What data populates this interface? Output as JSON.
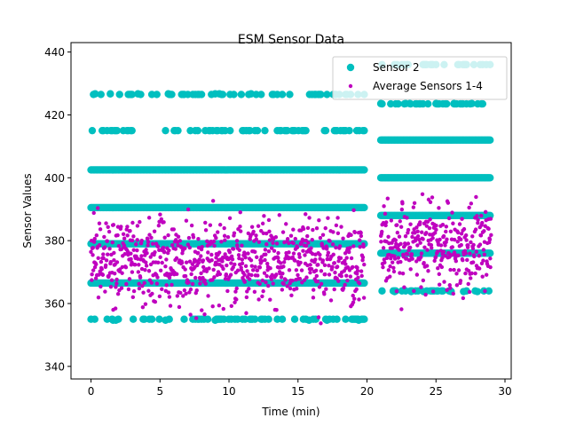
{
  "chart_data": {
    "type": "scatter",
    "title": "ESM Sensor Data",
    "xlabel": "Time (min)",
    "ylabel": "Sensor Values",
    "xlim": [
      -1.45,
      30.45
    ],
    "ylim": [
      336,
      443
    ],
    "xticks": [
      0,
      5,
      10,
      15,
      20,
      25,
      30
    ],
    "yticks": [
      340,
      360,
      380,
      400,
      420,
      440
    ],
    "grid": false,
    "legend_position": "top-right",
    "series": [
      {
        "name": "Sensor 2",
        "color": "#00bfbf",
        "marker": "large-circle",
        "segments": [
          {
            "x_start": 0.0,
            "x_end": 19.8,
            "dense_levels": [
              366.5,
              379,
              390.5,
              402.5
            ],
            "sparse_levels": [
              355,
              415,
              426.5
            ]
          },
          {
            "x_start": 21.0,
            "x_end": 29.0,
            "dense_levels": [
              376,
              388,
              400,
              412
            ],
            "sparse_levels": [
              364,
              423.5,
              436
            ]
          }
        ],
        "extra_points": [
          {
            "x": 0.3,
            "y": 426.7
          },
          {
            "x": 1.4,
            "y": 426.7
          },
          {
            "x": 3.4,
            "y": 426.7
          },
          {
            "x": 5.6,
            "y": 426.7
          },
          {
            "x": 9.0,
            "y": 426.7
          },
          {
            "x": 9.3,
            "y": 426.7
          },
          {
            "x": 11.6,
            "y": 426.7
          },
          {
            "x": 1.6,
            "y": 354.7
          },
          {
            "x": 1.8,
            "y": 354.7
          },
          {
            "x": 5.4,
            "y": 354.7
          },
          {
            "x": 9.0,
            "y": 354.7
          },
          {
            "x": 15.8,
            "y": 354.7
          },
          {
            "x": 17.1,
            "y": 354.7
          },
          {
            "x": 19.4,
            "y": 354.7
          },
          {
            "x": 21.0,
            "y": 423.6
          },
          {
            "x": 22.8,
            "y": 423.6
          },
          {
            "x": 23.1,
            "y": 423.6
          },
          {
            "x": 25.0,
            "y": 423.6
          },
          {
            "x": 26.3,
            "y": 423.6
          },
          {
            "x": 27.6,
            "y": 423.6
          },
          {
            "x": 25.0,
            "y": 436.0
          },
          {
            "x": 22.0,
            "y": 363.8
          },
          {
            "x": 23.2,
            "y": 363.8
          },
          {
            "x": 24.1,
            "y": 363.8
          },
          {
            "x": 26.1,
            "y": 363.8
          },
          {
            "x": 27.0,
            "y": 363.8
          },
          {
            "x": 28.0,
            "y": 363.8
          }
        ]
      },
      {
        "name": "Average Sensors 1-4",
        "color": "#bf00bf",
        "marker": "small-circle",
        "segments": [
          {
            "x_start": 0.0,
            "x_end": 19.8,
            "mean": 373.5,
            "spread": 9.5,
            "min": 340.5,
            "max": 405.5
          },
          {
            "x_start": 21.0,
            "x_end": 29.0,
            "mean": 378.5,
            "spread": 9.5,
            "min": 351,
            "max": 404
          }
        ]
      }
    ]
  }
}
